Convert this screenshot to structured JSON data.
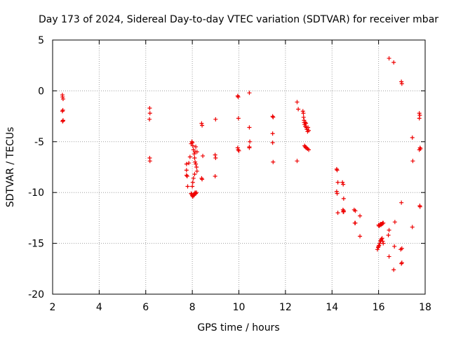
{
  "chart_data": {
    "type": "scatter",
    "title": "Day 173 of 2024, Sidereal Day-to-day VTEC variation (SDTVAR) for receiver mbar",
    "xlabel": "GPS time / hours",
    "ylabel": "SDTVAR / TECUs",
    "xlim": [
      2,
      18
    ],
    "ylim": [
      -20,
      5
    ],
    "xticks": [
      2,
      4,
      6,
      8,
      10,
      12,
      14,
      16,
      18
    ],
    "yticks": [
      -20,
      -15,
      -10,
      -5,
      0,
      5
    ],
    "grid": true,
    "marker": "+",
    "color": "#ee0000",
    "series": [
      {
        "name": "SDTVAR",
        "x": [
          2.42,
          2.43,
          2.45,
          2.44,
          2.42,
          2.45,
          2.43,
          2.44,
          6.17,
          6.18,
          6.16,
          6.17,
          6.18,
          7.75,
          7.75,
          7.78,
          7.8,
          7.85,
          7.9,
          7.95,
          7.98,
          8.0,
          8.02,
          8.05,
          8.08,
          8.1,
          8.12,
          8.15,
          8.18,
          8.2,
          8.1,
          8.05,
          8.02,
          8.0,
          8.12,
          8.15,
          8.18,
          7.95,
          7.98,
          8.0,
          8.02,
          8.05,
          8.08,
          8.1,
          8.12,
          8.15,
          8.2,
          7.75,
          8.4,
          8.42,
          8.45,
          8.4,
          8.42,
          9.0,
          8.98,
          9.0,
          8.98,
          9.95,
          9.97,
          9.98,
          9.95,
          9.97,
          10.0,
          10.45,
          10.45,
          10.47,
          10.45,
          10.45,
          11.45,
          11.47,
          11.45,
          11.45,
          11.47,
          12.5,
          12.55,
          12.5,
          12.75,
          12.77,
          12.78,
          12.8,
          12.8,
          12.82,
          12.85,
          12.85,
          12.88,
          12.9,
          12.92,
          12.95,
          12.97,
          13.0,
          12.82,
          12.85,
          12.88,
          12.9,
          12.95,
          13.0,
          14.2,
          14.22,
          14.25,
          14.2,
          14.22,
          14.25,
          14.45,
          14.48,
          14.5,
          14.47,
          14.5,
          14.48,
          14.5,
          14.95,
          15.0,
          14.98,
          15.0,
          15.2,
          15.2,
          15.95,
          15.98,
          16.0,
          16.02,
          16.05,
          16.08,
          16.1,
          16.12,
          16.15,
          16.18,
          16.2,
          16.1,
          16.12,
          16.15,
          16.18,
          16.2,
          16.0,
          16.02,
          16.05,
          16.08,
          16.45,
          16.45,
          16.42,
          16.45,
          16.65,
          16.7,
          16.68,
          16.65,
          16.98,
          17.0,
          16.98,
          17.0,
          16.95,
          17.0,
          16.98,
          17.45,
          17.47,
          17.45,
          17.75,
          17.77,
          17.75,
          17.78,
          17.8,
          17.75,
          17.77,
          17.78
        ],
        "y": [
          -0.4,
          -0.6,
          -0.8,
          -1.9,
          -2.0,
          -2.9,
          -3.0,
          -2.95,
          -1.7,
          -2.2,
          -2.8,
          -6.6,
          -6.9,
          -7.2,
          -7.8,
          -8.4,
          -9.4,
          -7.1,
          -6.5,
          -5.2,
          -5.0,
          -5.1,
          -5.4,
          -5.8,
          -6.2,
          -6.6,
          -7.0,
          -7.2,
          -7.5,
          -7.9,
          -8.2,
          -8.6,
          -9.0,
          -9.4,
          -10.0,
          -10.1,
          -10.0,
          -10.1,
          -10.2,
          -10.3,
          -10.4,
          -10.3,
          -10.2,
          -10.1,
          -6.0,
          -5.5,
          -6.0,
          -8.3,
          -3.2,
          -3.4,
          -6.4,
          -8.6,
          -8.7,
          -2.8,
          -6.3,
          -6.6,
          -8.4,
          -0.5,
          -0.6,
          -2.7,
          -5.6,
          -5.8,
          -5.9,
          -0.2,
          -3.6,
          -5.0,
          -5.5,
          -5.6,
          -2.5,
          -2.6,
          -4.2,
          -5.1,
          -7.0,
          -1.1,
          -1.8,
          -6.9,
          -2.0,
          -2.2,
          -2.6,
          -2.9,
          -3.1,
          -3.3,
          -3.5,
          -3.1,
          -3.2,
          -3.6,
          -3.8,
          -4.0,
          -3.6,
          -3.9,
          -5.4,
          -5.5,
          -5.6,
          -5.6,
          -5.7,
          -5.8,
          -7.7,
          -7.8,
          -9.0,
          -9.9,
          -10.1,
          -12.0,
          -9.0,
          -9.2,
          -10.6,
          -11.7,
          -11.8,
          -11.9,
          -11.9,
          -11.7,
          -11.8,
          -13.0,
          -13.0,
          -12.3,
          -14.3,
          -15.6,
          -15.4,
          -15.3,
          -15.2,
          -15.0,
          -14.8,
          -14.7,
          -14.6,
          -14.5,
          -14.8,
          -15.0,
          -13.2,
          -13.1,
          -13.1,
          -13.0,
          -13.0,
          -13.2,
          -13.3,
          -13.2,
          -13.1,
          3.2,
          -13.7,
          -14.2,
          -16.3,
          2.8,
          -12.9,
          -15.3,
          -17.6,
          0.9,
          0.7,
          -11.0,
          -15.5,
          -15.6,
          -16.9,
          -17.0,
          -4.6,
          -6.9,
          -13.4,
          -2.2,
          -2.4,
          -2.7,
          -5.6,
          -5.7,
          -5.8,
          -11.3,
          -11.4
        ]
      }
    ]
  }
}
